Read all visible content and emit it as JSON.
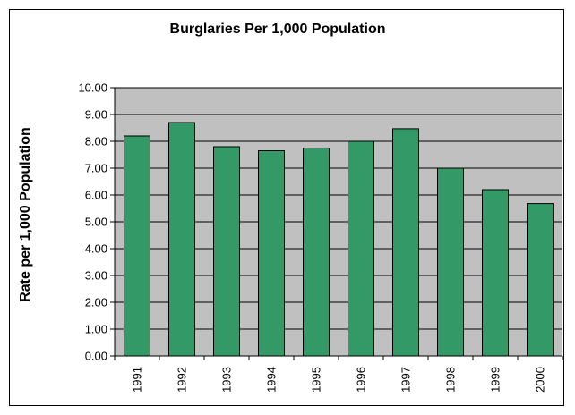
{
  "chart_data": {
    "type": "bar",
    "title": "Burglaries Per 1,000 Population",
    "xlabel": "",
    "ylabel": "Rate per 1,000 Population",
    "categories": [
      "1991",
      "1992",
      "1993",
      "1994",
      "1995",
      "1996",
      "1997",
      "1998",
      "1999",
      "2000"
    ],
    "values": [
      8.2,
      8.7,
      7.8,
      7.65,
      7.75,
      8.0,
      8.47,
      7.0,
      6.2,
      5.68
    ],
    "ylim": [
      0,
      10
    ],
    "yticks": [
      "0.00",
      "1.00",
      "2.00",
      "3.00",
      "4.00",
      "5.00",
      "6.00",
      "7.00",
      "8.00",
      "9.00",
      "10.00"
    ],
    "grid": true,
    "legend": "none",
    "colors": {
      "bar": "#339966",
      "plot_background": "#c0c0c0",
      "border": "#000000"
    }
  }
}
